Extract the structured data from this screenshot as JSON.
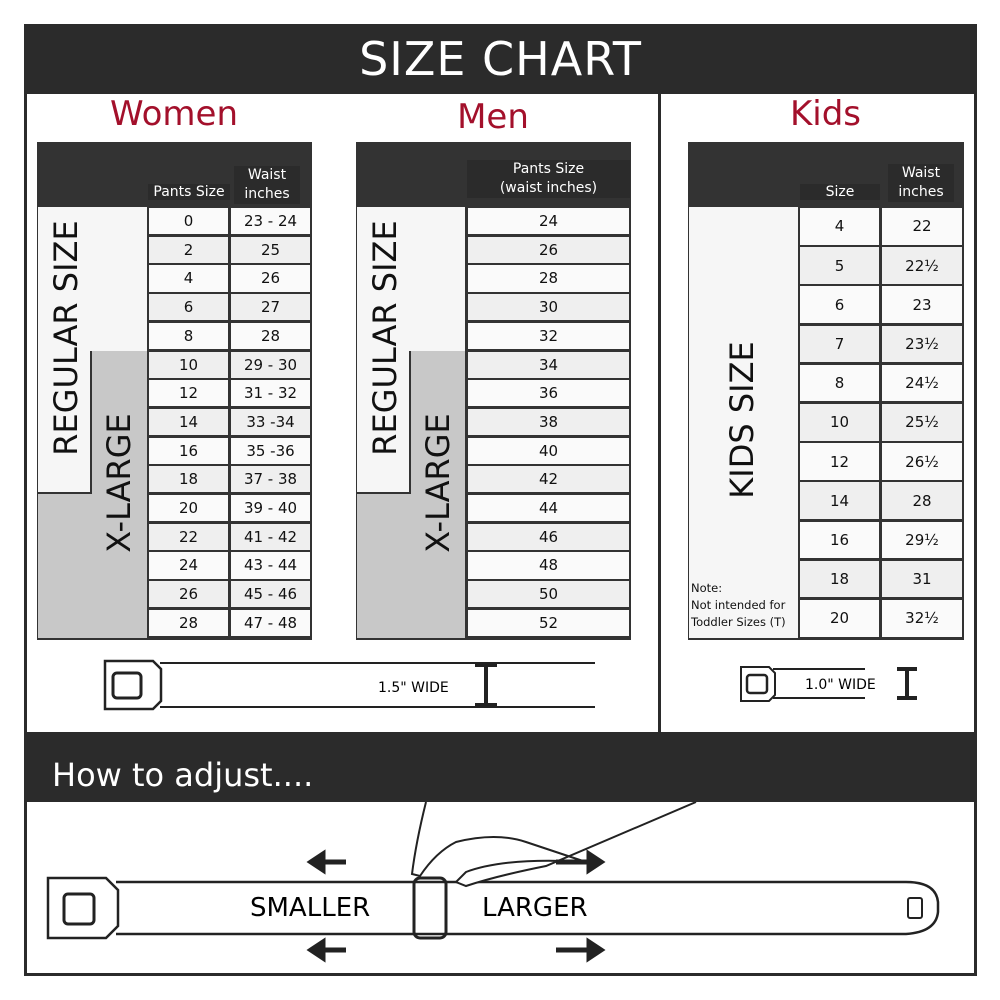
{
  "title": "SIZE CHART",
  "women": {
    "title": "Women",
    "col1": "Pants Size",
    "col2": "Waist inches",
    "regular_label": "REGULAR SIZE",
    "xlarge_label": "X-LARGE",
    "rows": [
      [
        "0",
        "23 - 24"
      ],
      [
        "2",
        "25"
      ],
      [
        "4",
        "26"
      ],
      [
        "6",
        "27"
      ],
      [
        "8",
        "28"
      ],
      [
        "10",
        "29 - 30"
      ],
      [
        "12",
        "31 - 32"
      ],
      [
        "14",
        "33 -34"
      ],
      [
        "16",
        "35 -36"
      ],
      [
        "18",
        "37 - 38"
      ],
      [
        "20",
        "39 - 40"
      ],
      [
        "22",
        "41 - 42"
      ],
      [
        "24",
        "43 - 44"
      ],
      [
        "26",
        "45 - 46"
      ],
      [
        "28",
        "47 - 48"
      ]
    ]
  },
  "men": {
    "title": "Men",
    "col1": "Pants Size",
    "col1b": "(waist inches)",
    "regular_label": "REGULAR SIZE",
    "xlarge_label": "X-LARGE",
    "rows": [
      "24",
      "26",
      "28",
      "30",
      "32",
      "34",
      "36",
      "38",
      "40",
      "42",
      "44",
      "46",
      "48",
      "50",
      "52"
    ]
  },
  "kids": {
    "title": "Kids",
    "col1": "Size",
    "col2": "Waist inches",
    "label": "KIDS SIZE",
    "note_title": "Note:",
    "note_1": "Not intended for",
    "note_2": "Toddler Sizes (T)",
    "rows": [
      [
        "4",
        "22"
      ],
      [
        "5",
        "22½"
      ],
      [
        "6",
        "23"
      ],
      [
        "7",
        "23½"
      ],
      [
        "8",
        "24½"
      ],
      [
        "10",
        "25½"
      ],
      [
        "12",
        "26½"
      ],
      [
        "14",
        "28"
      ],
      [
        "16",
        "29½"
      ],
      [
        "18",
        "31"
      ],
      [
        "20",
        "32½"
      ]
    ]
  },
  "belt_adult_width": "1.5\" WIDE",
  "belt_kids_width": "1.0\" WIDE",
  "adjust": {
    "title": "How to adjust....",
    "smaller": "SMALLER",
    "larger": "LARGER"
  },
  "colors": {
    "dark": "#2b2b2b",
    "accent": "#a3102b",
    "xlarge_gray": "#c8c8c8",
    "row_alt": "#efefef"
  }
}
